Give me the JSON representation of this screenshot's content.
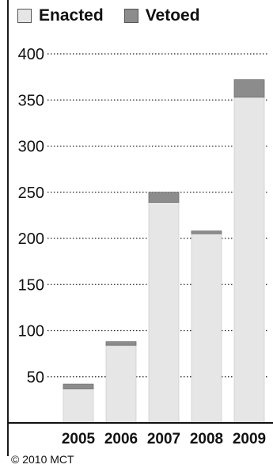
{
  "chart_data": {
    "type": "bar",
    "stacked": true,
    "categories": [
      "2005",
      "2006",
      "2007",
      "2008",
      "2009"
    ],
    "series": [
      {
        "name": "Enacted",
        "color": "#e6e6e6",
        "values": [
          37,
          84,
          239,
          205,
          353
        ]
      },
      {
        "name": "Vetoed",
        "color": "#8c8c8c",
        "values": [
          5,
          4,
          11,
          3,
          19
        ]
      }
    ],
    "yticks": [
      50,
      100,
      150,
      200,
      250,
      300,
      350,
      400
    ],
    "ylim": [
      0,
      400
    ],
    "grid": "dotted horizontal",
    "legend": "top-left"
  },
  "credit": "© 2010 MCT"
}
